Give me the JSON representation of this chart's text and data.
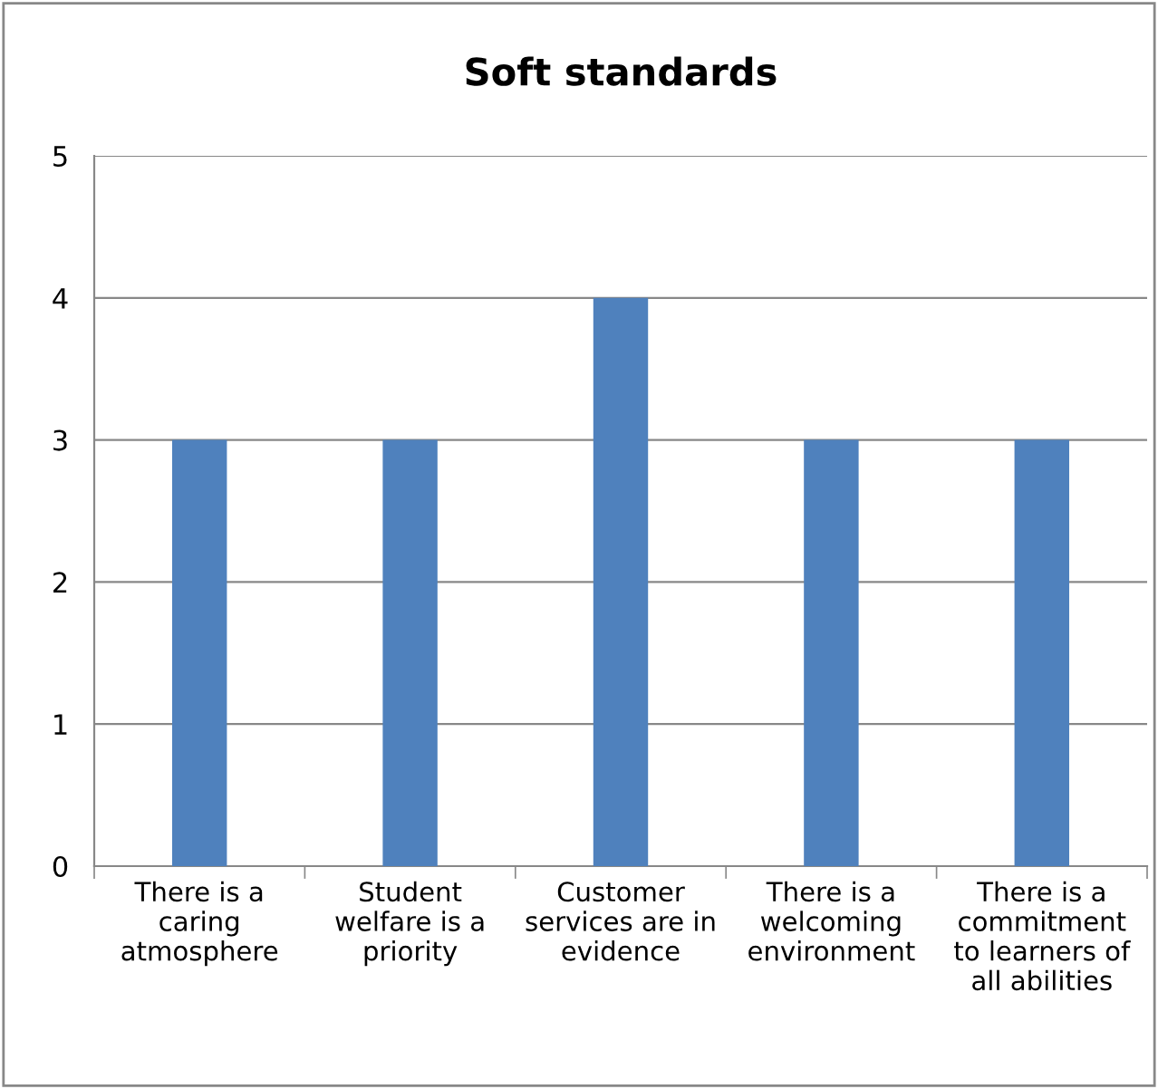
{
  "chart_data": {
    "type": "bar",
    "title": "Soft standards",
    "categories": [
      "There is a\ncaring\natmosphere",
      "Student\nwelfare is a\npriority",
      "Customer\nservices are in\nevidence",
      "There is a\nwelcoming\nenvironment",
      "There is a\ncommitment\nto learners of\nall abilities"
    ],
    "values": [
      3,
      3,
      4,
      3,
      3
    ],
    "color": "#4f81bd",
    "ylim": [
      0,
      5
    ],
    "yticks": [
      0,
      1,
      2,
      3,
      4,
      5
    ],
    "grid": "y",
    "legend": false
  }
}
